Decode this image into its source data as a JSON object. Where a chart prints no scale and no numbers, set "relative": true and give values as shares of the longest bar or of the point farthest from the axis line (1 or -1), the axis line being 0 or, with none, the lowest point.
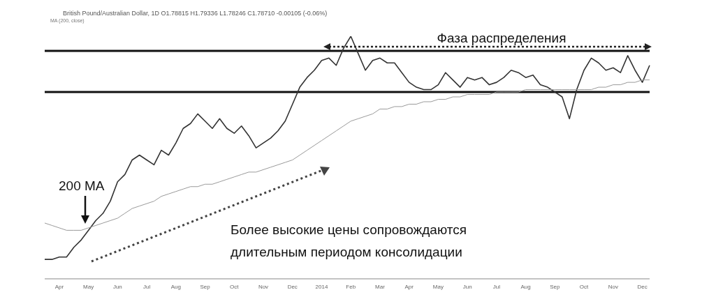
{
  "chart_data": {
    "type": "line",
    "relative": true,
    "title": "British Pound/Australian Dollar, 1D   O1.78815 H1.79336 L1.78246 C1.78710 -0.00105 (-0.06%)",
    "subtitle": "MA (200, close)",
    "annotations": [
      "Фаза распределения",
      "200 MA",
      "Более высокие цены сопровождаются длительным периодом консолидации"
    ],
    "categories": [
      null,
      null,
      "Apr",
      null,
      null,
      null,
      "May",
      null,
      null,
      null,
      "Jun",
      null,
      null,
      null,
      "Jul",
      null,
      null,
      null,
      "Aug",
      null,
      null,
      null,
      "Sep",
      null,
      null,
      null,
      "Oct",
      null,
      null,
      null,
      "Nov",
      null,
      null,
      null,
      "Dec",
      null,
      null,
      null,
      "2014",
      null,
      null,
      null,
      "Feb",
      null,
      null,
      null,
      "Mar",
      null,
      null,
      null,
      "Apr",
      null,
      null,
      null,
      "May",
      null,
      null,
      null,
      "Jun",
      null,
      null,
      null,
      "Jul",
      null,
      null,
      null,
      "Aug",
      null,
      null,
      null,
      "Sep",
      null,
      null,
      null,
      "Oct",
      null,
      null,
      null,
      "Nov",
      null,
      null,
      null,
      "Dec",
      null
    ],
    "series": [
      {
        "color": "#333333",
        "values": [
          0.08,
          0.08,
          0.09,
          0.09,
          0.13,
          0.16,
          0.2,
          0.24,
          0.27,
          0.32,
          0.4,
          0.43,
          0.49,
          0.51,
          0.49,
          0.47,
          0.53,
          0.51,
          0.56,
          0.62,
          0.64,
          0.68,
          0.65,
          0.62,
          0.66,
          0.62,
          0.6,
          0.63,
          0.59,
          0.54,
          0.56,
          0.58,
          0.61,
          0.65,
          0.72,
          0.79,
          0.83,
          0.86,
          0.9,
          0.91,
          0.88,
          0.95,
          1,
          0.93,
          0.86,
          0.9,
          0.91,
          0.89,
          0.89,
          0.85,
          0.81,
          0.79,
          0.78,
          0.78,
          0.8,
          0.85,
          0.82,
          0.79,
          0.83,
          0.82,
          0.83,
          0.8,
          0.81,
          0.83,
          0.86,
          0.85,
          0.83,
          0.84,
          0.8,
          0.79,
          0.77,
          0.75,
          0.66,
          0.78,
          0.86,
          0.91,
          0.89,
          0.86,
          0.87,
          0.85,
          0.92,
          0.86,
          0.81,
          0.88
        ]
      },
      {
        "color": "#9a9a9a",
        "values": [
          0.23,
          0.22,
          0.21,
          0.2,
          0.2,
          0.2,
          0.21,
          0.22,
          0.23,
          0.24,
          0.25,
          0.27,
          0.29,
          0.3,
          0.31,
          0.32,
          0.34,
          0.35,
          0.36,
          0.37,
          0.38,
          0.38,
          0.39,
          0.39,
          0.4,
          0.41,
          0.42,
          0.43,
          0.44,
          0.44,
          0.45,
          0.46,
          0.47,
          0.48,
          0.49,
          0.51,
          0.53,
          0.55,
          0.57,
          0.59,
          0.61,
          0.63,
          0.65,
          0.66,
          0.67,
          0.68,
          0.7,
          0.7,
          0.71,
          0.71,
          0.72,
          0.72,
          0.73,
          0.73,
          0.74,
          0.74,
          0.75,
          0.75,
          0.76,
          0.76,
          0.76,
          0.76,
          0.77,
          0.77,
          0.77,
          0.77,
          0.78,
          0.78,
          0.78,
          0.78,
          0.78,
          0.78,
          0.78,
          0.78,
          0.78,
          0.78,
          0.79,
          0.79,
          0.8,
          0.8,
          0.81,
          0.81,
          0.82,
          0.82
        ]
      }
    ],
    "ref_lines": [
      {
        "axis": "y",
        "value": 0.94,
        "color": "#111111"
      },
      {
        "axis": "y",
        "value": 0.77,
        "color": "#111111"
      }
    ],
    "marker": "none",
    "line_style": "solid",
    "grid": false,
    "legend": false
  }
}
